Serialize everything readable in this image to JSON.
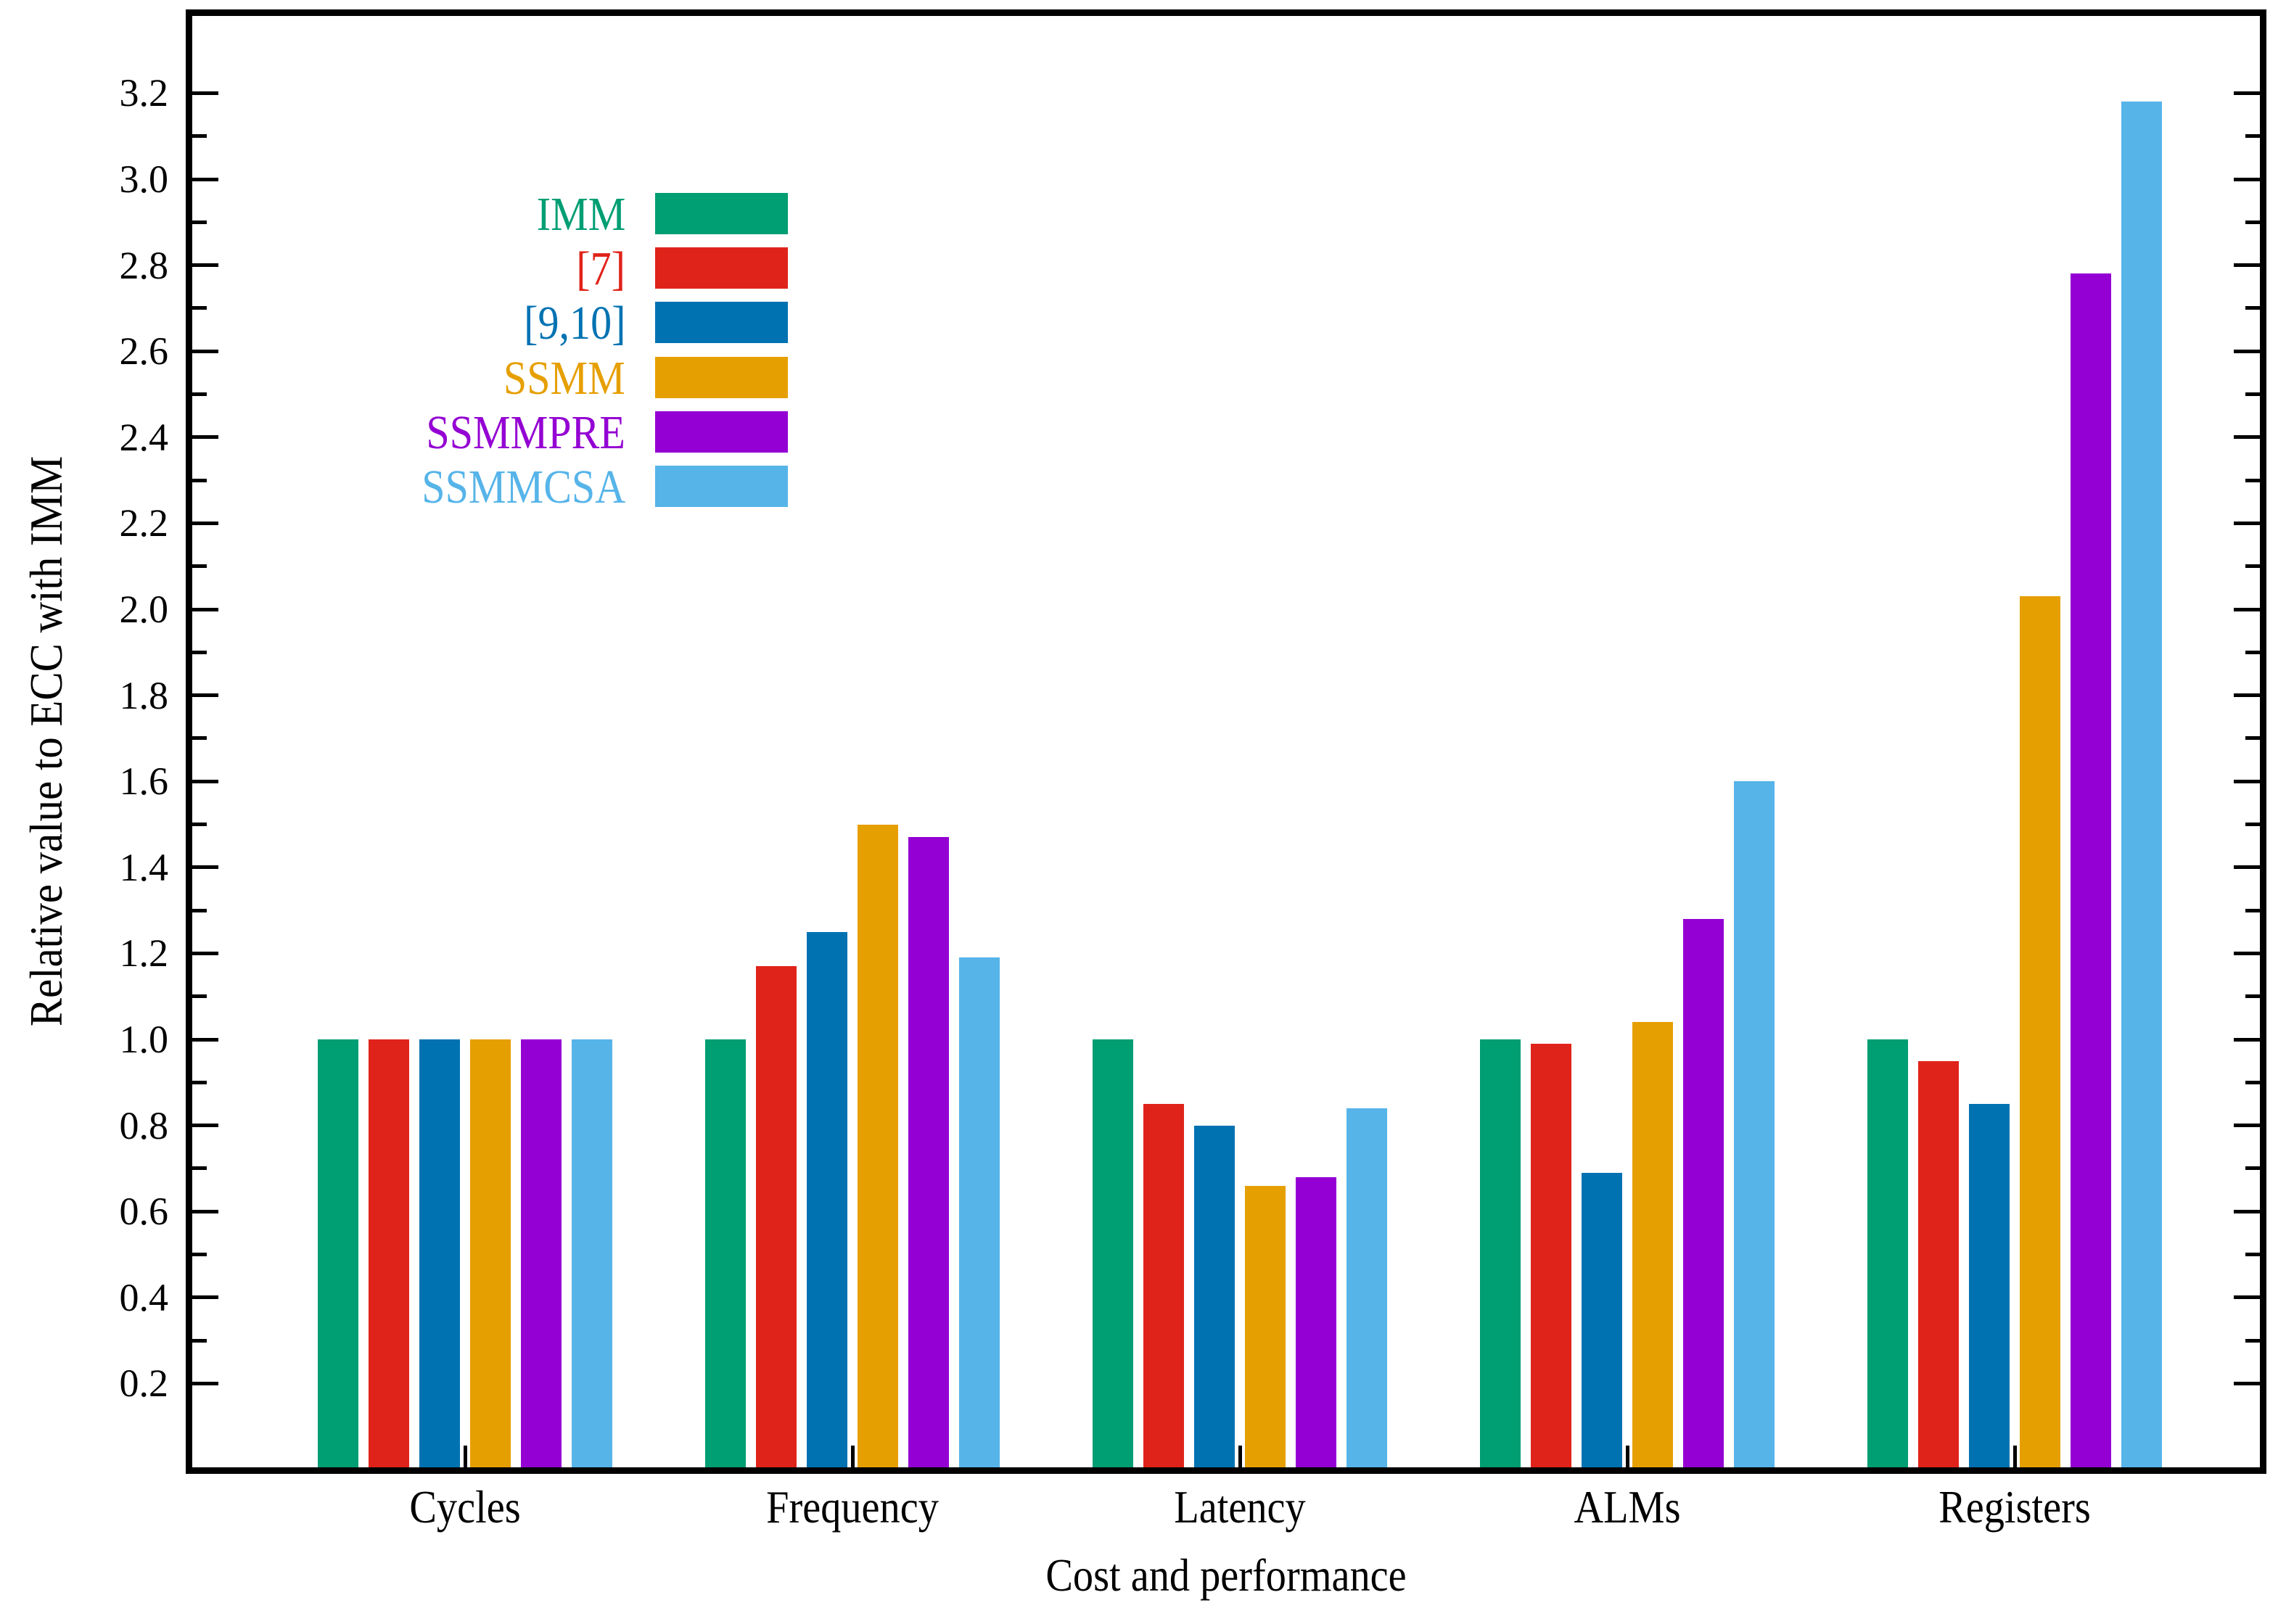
{
  "chart_data": {
    "type": "bar",
    "title": "",
    "xlabel": "Cost and performance",
    "ylabel": "Relative value to ECC with IMM",
    "categories": [
      "Cycles",
      "Frequency",
      "Latency",
      "ALMs",
      "Registers"
    ],
    "series": [
      {
        "name": "IMM",
        "color": "#009E73",
        "values": [
          1.0,
          1.0,
          1.0,
          1.0,
          1.0
        ]
      },
      {
        "name": "[7]",
        "color": "#E0231A",
        "values": [
          1.0,
          1.17,
          0.85,
          0.99,
          0.95
        ]
      },
      {
        "name": "[9,10]",
        "color": "#0072B2",
        "values": [
          1.0,
          1.25,
          0.8,
          0.69,
          0.85
        ]
      },
      {
        "name": "SSMM",
        "color": "#E69F00",
        "values": [
          1.0,
          1.5,
          0.66,
          1.04,
          2.03
        ]
      },
      {
        "name": "SSMMPRE",
        "color": "#9400D3",
        "values": [
          1.0,
          1.47,
          0.68,
          1.28,
          2.78
        ]
      },
      {
        "name": "SSMMCSA",
        "color": "#56B4E9",
        "values": [
          1.0,
          1.19,
          0.84,
          1.6,
          3.18
        ]
      }
    ],
    "ylim": [
      0,
      3.4
    ],
    "y_major_ticks": [
      0.2,
      0.4,
      0.6,
      0.8,
      1.0,
      1.2,
      1.4,
      1.6,
      1.8,
      2.0,
      2.2,
      2.4,
      2.6,
      2.8,
      3.0,
      3.2
    ],
    "y_tick_labels": [
      "0.2",
      "0.4",
      "0.6",
      "0.8",
      "1.0",
      "1.2",
      "1.4",
      "1.6",
      "1.8",
      "2.0",
      "2.2",
      "2.4",
      "2.6",
      "2.8",
      "3.0",
      "3.2"
    ],
    "y_minor_ticks": [
      0.3,
      0.5,
      0.7,
      0.9,
      1.1,
      1.3,
      1.5,
      1.7,
      1.9,
      2.1,
      2.3,
      2.5,
      2.7,
      2.9,
      3.1
    ],
    "grid": false,
    "legend_position": "upper-left-inside",
    "axis_color": "#000000",
    "background_color": "#ffffff"
  }
}
